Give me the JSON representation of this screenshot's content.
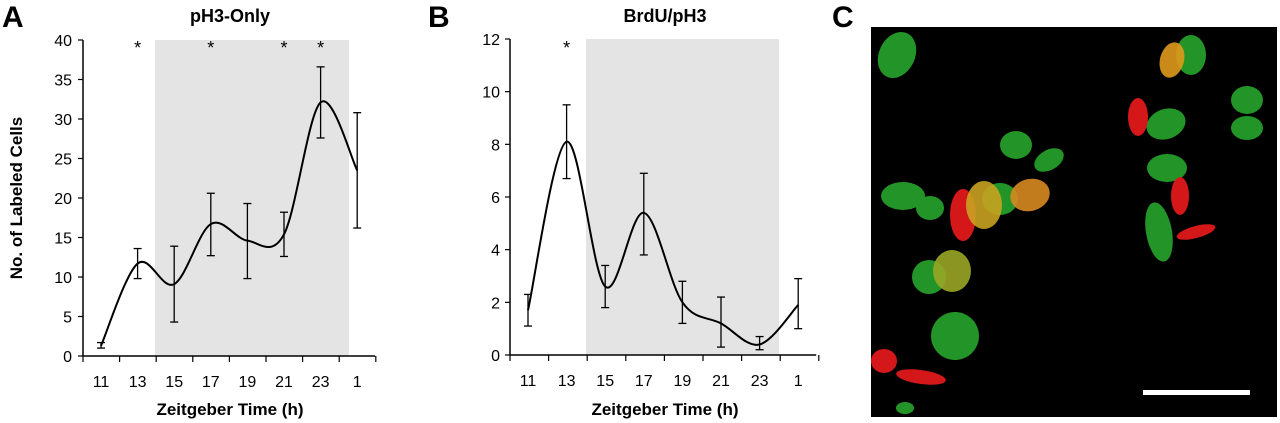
{
  "panels": {
    "a": {
      "letter": "A"
    },
    "b": {
      "letter": "B"
    },
    "c": {
      "letter": "C"
    }
  },
  "chart_data": [
    {
      "panel": "A",
      "type": "line",
      "title": "pH3-Only",
      "xlabel": "Zeitgeber Time (h)",
      "ylabel": "No. of Labeled Cells",
      "categories": [
        "11",
        "13",
        "15",
        "17",
        "19",
        "21",
        "23",
        "1"
      ],
      "values": [
        1.3,
        11.7,
        9.1,
        16.7,
        14.6,
        15.4,
        32.1,
        23.5
      ],
      "error_low": [
        1.0,
        9.8,
        4.3,
        12.7,
        9.8,
        12.6,
        27.6,
        16.2
      ],
      "error_high": [
        1.7,
        13.6,
        13.9,
        20.6,
        19.3,
        18.2,
        36.6,
        30.8
      ],
      "ylim": [
        0,
        40
      ],
      "yticks": [
        "0",
        "5",
        "10",
        "15",
        "20",
        "25",
        "30",
        "35",
        "40"
      ],
      "shaded_x_range": [
        "14",
        "24"
      ],
      "shade_color": "#e4e4e4",
      "significance_marks": [
        {
          "category": "13",
          "text": "*"
        },
        {
          "category": "17",
          "text": "*"
        },
        {
          "category": "21",
          "text": "*"
        },
        {
          "category": "23",
          "text": "*"
        }
      ],
      "grid": false,
      "legend": "none"
    },
    {
      "panel": "B",
      "type": "line",
      "title": "BrdU/pH3",
      "xlabel": "Zeitgeber Time (h)",
      "ylabel": "",
      "categories": [
        "11",
        "13",
        "15",
        "17",
        "19",
        "21",
        "23",
        "1"
      ],
      "values": [
        1.7,
        8.1,
        2.6,
        5.4,
        2.0,
        1.2,
        0.4,
        1.9
      ],
      "error_low": [
        1.1,
        6.7,
        1.8,
        3.8,
        1.2,
        0.3,
        0.2,
        1.0
      ],
      "error_high": [
        2.3,
        9.5,
        3.4,
        6.9,
        2.8,
        2.2,
        0.7,
        2.9
      ],
      "ylim": [
        0,
        12
      ],
      "yticks": [
        "0",
        "2",
        "4",
        "6",
        "8",
        "10",
        "12"
      ],
      "shaded_x_range": [
        "14",
        "24"
      ],
      "shade_color": "#e4e4e4",
      "significance_marks": [
        {
          "category": "13",
          "text": "*"
        }
      ],
      "grid": false,
      "legend": "none"
    }
  ],
  "micrograph": {
    "background": "#000000",
    "red_channel_color": "#e0191b",
    "green_channel_color": "#27a52c",
    "scale_bar_color": "#ffffff"
  }
}
